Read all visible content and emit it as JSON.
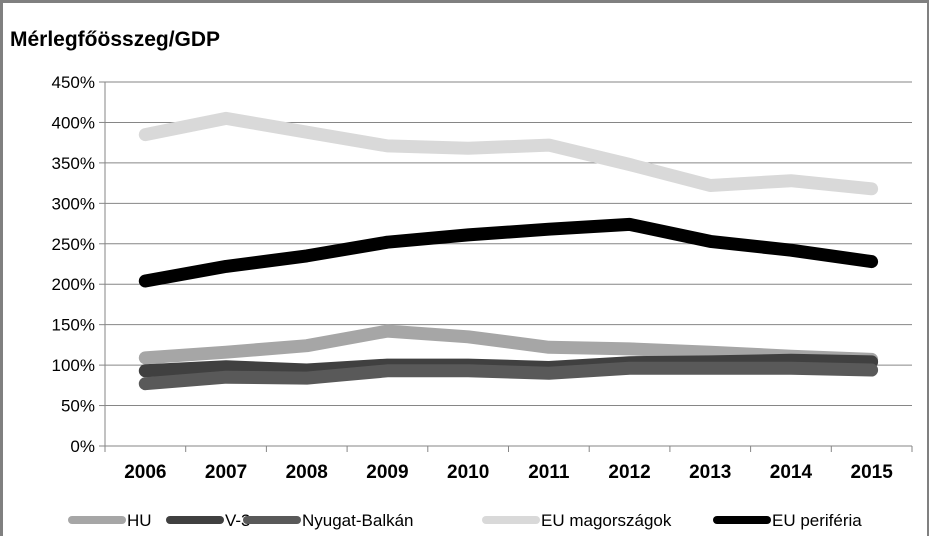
{
  "chart_data": {
    "type": "line",
    "title": "Mérlegfőösszeg/GDP",
    "xlabel": "",
    "ylabel": "",
    "categories": [
      "2006",
      "2007",
      "2008",
      "2009",
      "2010",
      "2011",
      "2012",
      "2013",
      "2014",
      "2015"
    ],
    "y_ticks": [
      "0%",
      "50%",
      "100%",
      "150%",
      "200%",
      "250%",
      "300%",
      "350%",
      "400%",
      "450%"
    ],
    "ylim": [
      0,
      450
    ],
    "grid": true,
    "legend_position": "bottom",
    "series": [
      {
        "name": "HU",
        "color": "#a6a6a6",
        "values": [
          109,
          116,
          124,
          142,
          135,
          122,
          120,
          116,
          111,
          107
        ]
      },
      {
        "name": "V-3",
        "color": "#404040",
        "values": [
          93,
          98,
          94,
          100,
          100,
          97,
          103,
          104,
          106,
          104
        ]
      },
      {
        "name": "Nyugat-Balkán",
        "color": "#595959",
        "values": [
          77,
          85,
          84,
          93,
          93,
          90,
          96,
          96,
          96,
          94
        ]
      },
      {
        "name": "EU magországok",
        "color": "#d9d9d9",
        "values": [
          385,
          405,
          388,
          371,
          368,
          372,
          348,
          322,
          328,
          318
        ]
      },
      {
        "name": "EU periféria",
        "color": "#000000",
        "values": [
          204,
          222,
          235,
          252,
          261,
          268,
          274,
          253,
          242,
          228
        ]
      }
    ]
  }
}
